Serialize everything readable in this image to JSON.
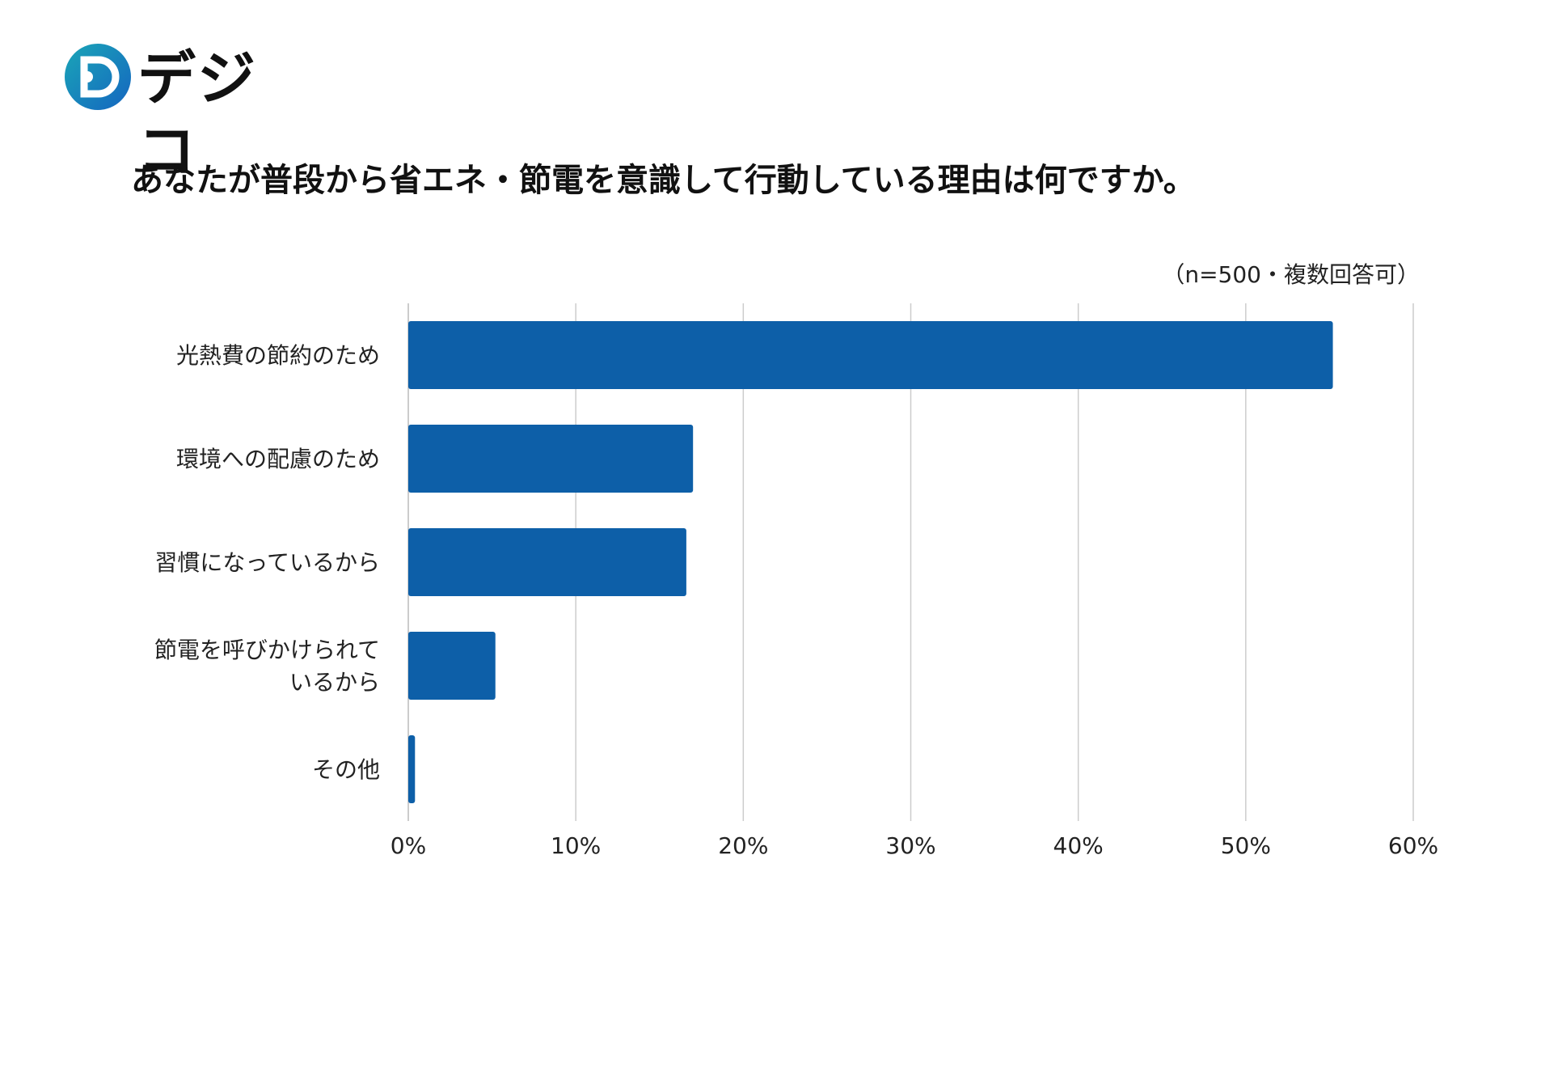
{
  "logo": {
    "text": "デジコ",
    "icon": "d-circle-logo-icon",
    "colors": {
      "teal": "#1aa6b7",
      "blue": "#1565c0"
    }
  },
  "header": {
    "title": "あなたが普段から省エネ・節電を意識して行動している理由は何ですか。"
  },
  "note": "（n=500・複数回答可）",
  "chart_data": {
    "type": "bar",
    "orientation": "horizontal",
    "title": "あなたが普段から省エネ・節電を意識して行動している理由は何ですか。",
    "categories": [
      [
        "光熱費の節約のため"
      ],
      [
        "環境への配慮のため"
      ],
      [
        "習慣になっているから"
      ],
      [
        "節電を呼びかけられて",
        "いるから"
      ],
      [
        "その他"
      ]
    ],
    "values": [
      55.2,
      17.0,
      16.6,
      5.2,
      0.4
    ],
    "unit": "%",
    "xlim": [
      0,
      60
    ],
    "xticks": [
      0,
      10,
      20,
      30,
      40,
      50,
      60
    ],
    "xtick_labels": [
      "0%",
      "10%",
      "20%",
      "30%",
      "40%",
      "50%",
      "60%"
    ],
    "grid": true,
    "bar_color": "#0d5fa8",
    "grid_color": "#cccccc"
  }
}
